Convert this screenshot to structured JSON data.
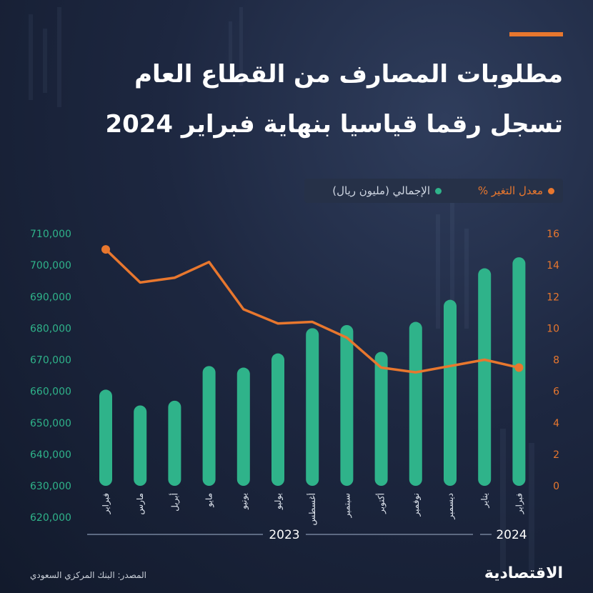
{
  "title": {
    "line1": "مطلوبات المصارف من القطاع العام",
    "line2": "تسجل رقما قياسيا بنهاية فبراير 2024"
  },
  "legend": {
    "rate": "معدل التغير %",
    "total": "الإجمالي (مليون ريال)"
  },
  "colors": {
    "bars": "#2fb38a",
    "line": "#e8772e",
    "accent": "#e8772e"
  },
  "source": "المصدر: البنك المركزي السعودي",
  "logo": "الاقتصادية",
  "chart_data": {
    "type": "bar",
    "categories": [
      "فبراير",
      "مارس",
      "أبريل",
      "مايو",
      "يونيو",
      "يوليو",
      "أغسطس",
      "سبتمبر",
      "أكتوبر",
      "نوفمبر",
      "ديسمبر",
      "يناير",
      "فبراير"
    ],
    "series": [
      {
        "name": "الإجمالي (مليون ريال)",
        "type": "bar",
        "axis": "left",
        "values": [
          660500,
          655500,
          657000,
          668000,
          667500,
          672000,
          680000,
          681000,
          672500,
          682000,
          689000,
          699000,
          702500
        ]
      },
      {
        "name": "معدل التغير %",
        "type": "line",
        "axis": "right",
        "values": [
          15.0,
          12.9,
          13.2,
          14.2,
          11.2,
          10.3,
          10.4,
          9.4,
          7.5,
          7.2,
          7.6,
          8.0,
          7.5
        ]
      }
    ],
    "y_left": {
      "ticks": [
        620000,
        630000,
        640000,
        650000,
        660000,
        670000,
        680000,
        690000,
        700000,
        710000
      ],
      "tick_labels": [
        "620,000",
        "630,000",
        "640,000",
        "650,000",
        "660,000",
        "670,000",
        "680,000",
        "690,000",
        "700,000",
        "710,000"
      ]
    },
    "y_right": {
      "ticks": [
        0,
        2,
        4,
        6,
        8,
        10,
        12,
        14,
        16
      ],
      "tick_labels": [
        "0",
        "2",
        "4",
        "6",
        "8",
        "10",
        "12",
        "14",
        "16"
      ]
    },
    "years": [
      {
        "label": "2023",
        "from": 0,
        "to": 10
      },
      {
        "label": "2024",
        "from": 11,
        "to": 12
      }
    ],
    "grid": false
  }
}
